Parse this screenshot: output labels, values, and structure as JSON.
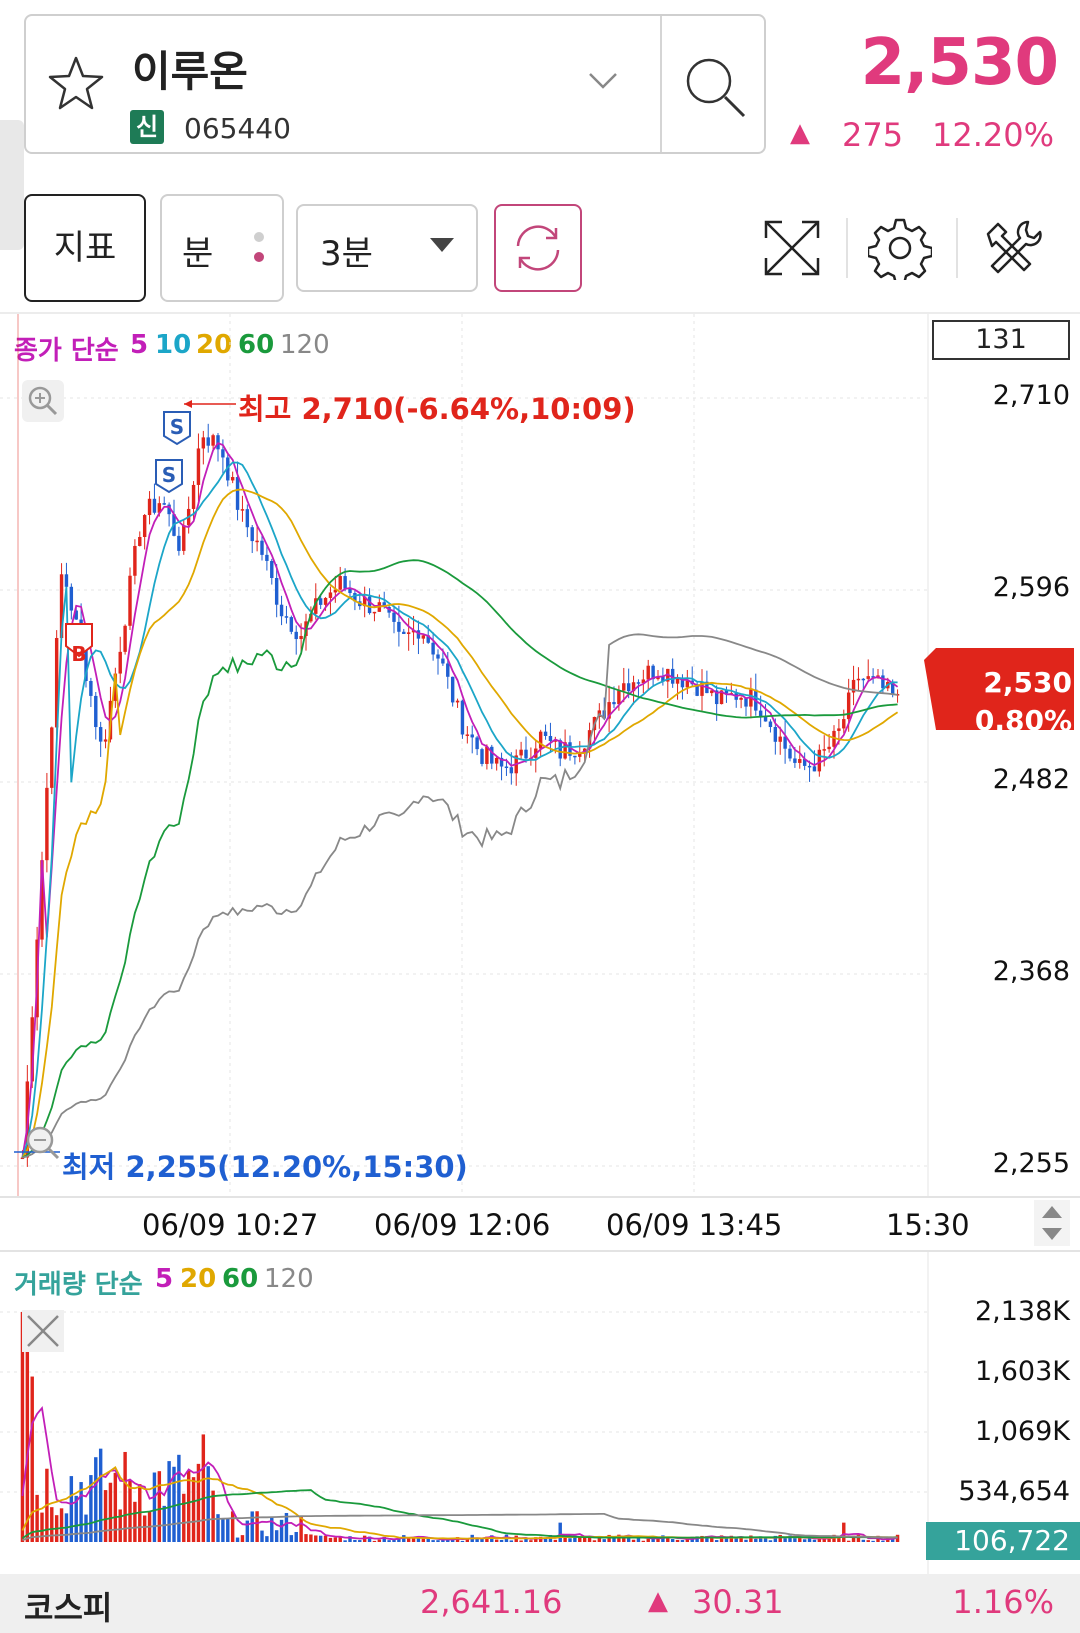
{
  "header": {
    "stock_name": "이루온",
    "market_badge": "신",
    "stock_code": "065440",
    "price": "2,530",
    "change_arrow": "▲",
    "change": "275",
    "change_pct": "12.20%"
  },
  "toolbar": {
    "indicator_label": "지표",
    "minute_label": "분",
    "interval_label": "3분"
  },
  "icons": {
    "favorite": "star-icon",
    "dropdown": "chevron-down-icon",
    "search": "search-icon",
    "refresh": "refresh-icon",
    "fullscreen": "expand-icon",
    "settings": "gear-icon",
    "tools": "tools-icon",
    "zoom_in": "zoom-in-icon",
    "zoom_out": "zoom-out-icon",
    "close": "close-icon",
    "scroll": "scroll-arrows-icon"
  },
  "colors": {
    "up": "#e0251b",
    "down": "#1f5fd1",
    "accent": "#e03a7d",
    "ma5": "#c21fb8",
    "ma10": "#1ca6c8",
    "ma20": "#e0a800",
    "ma60": "#1a9a3c",
    "ma120": "#888888",
    "volume_tag": "#35a39b"
  },
  "legend": {
    "price_prefix": "종가 단순",
    "price_ma": [
      "5",
      "10",
      "20",
      "60",
      "120"
    ],
    "volume_prefix": "거래량 단순",
    "volume_ma": [
      "5",
      "20",
      "60",
      "120"
    ]
  },
  "chart_data": [
    {
      "type": "candlestick",
      "y_axis_labels": [
        "2,710",
        "2,596",
        "2,482",
        "2,368",
        "2,255"
      ],
      "ylim": [
        2255,
        2710
      ],
      "x_axis_labels": [
        "06/09 10:27",
        "06/09 12:06",
        "06/09 13:45",
        "15:30"
      ],
      "last_box": "131",
      "current_price_tag": {
        "price": "2,530",
        "pct": "0.80%"
      },
      "high_annotation": "최고 2,710(-6.64%,10:09)",
      "low_annotation": "최저 2,255(12.20%,15:30)",
      "markers": [
        "B",
        "S",
        "S"
      ],
      "close_path": [
        2260,
        2440,
        2610,
        2560,
        2500,
        2570,
        2640,
        2650,
        2620,
        2690,
        2680,
        2640,
        2620,
        2585,
        2570,
        2590,
        2600,
        2590,
        2585,
        2565,
        2575,
        2555,
        2520,
        2500,
        2490,
        2495,
        2510,
        2500,
        2505,
        2520,
        2540,
        2545,
        2550,
        2545,
        2540,
        2530,
        2535,
        2530,
        2510,
        2490,
        2495,
        2510,
        2545,
        2540,
        2530
      ],
      "moving_averages": [
        "5",
        "10",
        "20",
        "60",
        "120"
      ]
    },
    {
      "type": "bar",
      "title": "거래량",
      "y_axis_labels": [
        "2,138K",
        "1,603K",
        "1,069K",
        "534,654"
      ],
      "ylim": [
        0,
        2138000
      ],
      "last_volume": "106,722",
      "moving_averages": [
        "5",
        "20",
        "60",
        "120"
      ]
    }
  ],
  "footer": {
    "index_name": "코스피",
    "index_value": "2,641.16",
    "index_arrow": "▲",
    "index_change": "30.31",
    "index_change_pct": "1.16%"
  }
}
